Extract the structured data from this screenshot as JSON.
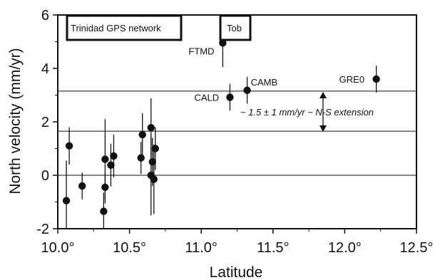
{
  "chart_data": {
    "type": "scatter",
    "title": "",
    "xlabel": "Latitude",
    "ylabel": "North velocity (mm/yr)",
    "xlim": [
      10.0,
      12.5
    ],
    "ylim": [
      -2,
      6
    ],
    "x_ticks": [
      {
        "value": 10.0,
        "label": "10.0°"
      },
      {
        "value": 10.5,
        "label": "10.5°"
      },
      {
        "value": 11.0,
        "label": "11.0°"
      },
      {
        "value": 11.5,
        "label": "11.5°"
      },
      {
        "value": 12.0,
        "label": "12.0°"
      },
      {
        "value": 12.5,
        "label": "12.5°"
      }
    ],
    "y_ticks": [
      {
        "value": -2,
        "label": "-2"
      },
      {
        "value": 0,
        "label": "0"
      },
      {
        "value": 2,
        "label": "2"
      },
      {
        "value": 4,
        "label": "4"
      },
      {
        "value": 6,
        "label": "6"
      }
    ],
    "grid": false,
    "reference_lines": [
      0,
      1.65,
      3.15
    ],
    "points": [
      {
        "x": 10.06,
        "y": -0.95,
        "err": 1.5
      },
      {
        "x": 10.08,
        "y": 1.1,
        "err": 0.7
      },
      {
        "x": 10.17,
        "y": -0.4,
        "err": 0.5
      },
      {
        "x": 10.32,
        "y": -1.35,
        "err": 0.7
      },
      {
        "x": 10.33,
        "y": -0.45,
        "err": 0.6
      },
      {
        "x": 10.33,
        "y": 0.6,
        "err": 1.5
      },
      {
        "x": 10.37,
        "y": 0.38,
        "err": 0.8
      },
      {
        "x": 10.39,
        "y": 0.72,
        "err": 0.8
      },
      {
        "x": 10.58,
        "y": 0.65,
        "err": 0.6
      },
      {
        "x": 10.59,
        "y": 1.52,
        "err": 0.8
      },
      {
        "x": 10.65,
        "y": 1.78,
        "err": 1.1
      },
      {
        "x": 10.65,
        "y": 0.0,
        "err": 1.5
      },
      {
        "x": 10.66,
        "y": 0.5,
        "err": 0.9
      },
      {
        "x": 10.67,
        "y": -0.15,
        "err": 1.3
      },
      {
        "x": 10.68,
        "y": 1.0,
        "err": 0.8
      },
      {
        "x": 11.15,
        "y": 4.95,
        "err": 0.9,
        "label": "FTMD"
      },
      {
        "x": 11.2,
        "y": 2.92,
        "err": 0.5,
        "label": "CALD"
      },
      {
        "x": 11.32,
        "y": 3.18,
        "err": 0.5,
        "label": "CAMB"
      },
      {
        "x": 12.22,
        "y": 3.6,
        "err": 0.5,
        "label": "GRE0"
      }
    ],
    "annotations": {
      "network_box": "Trinidad GPS network",
      "tob_box": "Tob",
      "extension": "~ 1.5 ± 1 mm/yr ~ N-S extension"
    }
  }
}
